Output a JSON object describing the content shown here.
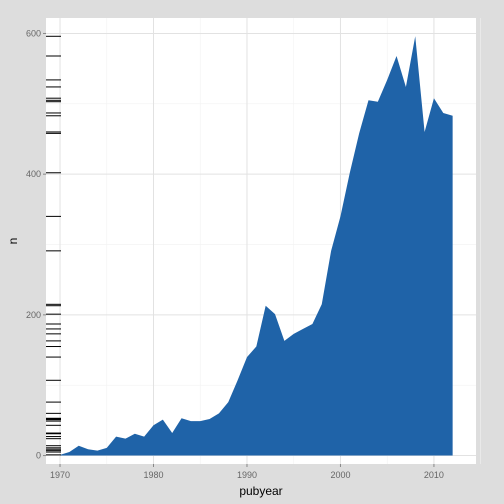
{
  "chart_data": {
    "type": "area",
    "xlabel": "pubyear",
    "ylabel": "n",
    "xlim": [
      1968.5,
      2014.5
    ],
    "ylim": [
      -12,
      622
    ],
    "x_ticks": [
      1970,
      1980,
      1990,
      2000,
      2010
    ],
    "y_ticks": [
      0,
      200,
      400,
      600
    ],
    "grid": true,
    "legend": "none",
    "colors": {
      "fill": "#1f63a8",
      "panel": "#ffffff",
      "grid": "#e2e2e2",
      "background": "#dddddd",
      "rug": "#000000"
    },
    "series": [
      {
        "x": [
          1970,
          1971,
          1972,
          1973,
          1974,
          1975,
          1976,
          1977,
          1978,
          1979,
          1980,
          1981,
          1982,
          1983,
          1984,
          1985,
          1986,
          1987,
          1988,
          1989,
          1990,
          1991,
          1992,
          1993,
          1994,
          1995,
          1996,
          1997,
          1998,
          1999,
          2000,
          2001,
          2002,
          2003,
          2004,
          2005,
          2006,
          2007,
          2008,
          2009,
          2010,
          2011,
          2012
        ],
        "values": [
          1,
          5,
          14,
          9,
          7,
          11,
          27,
          24,
          31,
          27,
          43,
          51,
          32,
          53,
          49,
          49,
          52,
          60,
          76,
          107,
          140,
          155,
          213,
          201,
          163,
          173,
          180,
          187,
          215,
          291,
          340,
          402,
          458,
          505,
          503,
          534,
          568,
          524,
          596,
          460,
          508,
          487,
          483
        ]
      }
    ],
    "rug_y": [
      1,
      5,
      7,
      9,
      11,
      14,
      24,
      27,
      31,
      32,
      43,
      49,
      51,
      52,
      53,
      60,
      76,
      107,
      140,
      155,
      163,
      173,
      180,
      187,
      201,
      213,
      215,
      291,
      340,
      402,
      458,
      460,
      483,
      487,
      503,
      505,
      508,
      524,
      534,
      568,
      596
    ]
  }
}
